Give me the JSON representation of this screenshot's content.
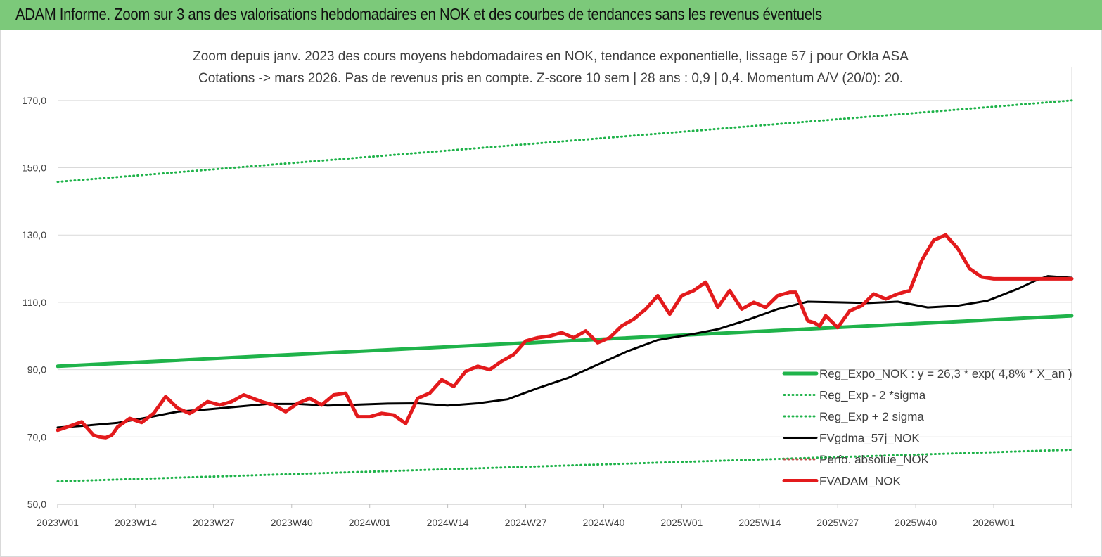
{
  "banner": {
    "title": "ADAM Informe. Zoom sur 3 ans des valorisations hebdomadaires en NOK et des courbes de tendances sans les revenus éventuels"
  },
  "chart_data": {
    "type": "line",
    "title": "Zoom depuis janv. 2023 des cours moyens hebdomadaires en NOK, tendance exponentielle, lissage 57 j pour Orkla ASA",
    "subtitle": "Cotations -> mars 2026. Pas de revenus pris en compte. Z-score 10 sem | 28 ans : 0,9 | 0,4. Momentum A/V (20/0): 20.",
    "x_tick_labels": [
      "2023W01",
      "2023W14",
      "2023W27",
      "2023W40",
      "2024W01",
      "2024W14",
      "2024W27",
      "2024W40",
      "2025W01",
      "2025W14",
      "2025W27",
      "2025W40",
      "2026W01"
    ],
    "y_tick_labels": [
      "50,0",
      "70,0",
      "90,0",
      "110,0",
      "130,0",
      "150,0",
      "170,0"
    ],
    "ylim": [
      50,
      180
    ],
    "n_weeks": 170,
    "grid": "horizontal",
    "legend_position": "bottom-right",
    "colors": {
      "green": "#1fb34a",
      "black": "#000000",
      "red": "#e31a1c",
      "orange": "#c0504d"
    },
    "series": [
      {
        "name": "Reg_Expo_NOK : y = 26,3 * exp( 4,8% *  X_an )",
        "style": "solid-thick",
        "color": "#1fb34a",
        "x": [
          0,
          169
        ],
        "y": [
          91.0,
          106.0
        ]
      },
      {
        "name": "Reg_Exp - 2 *sigma",
        "style": "dotted",
        "color": "#1fb34a",
        "x": [
          0,
          169
        ],
        "y": [
          56.8,
          66.2
        ]
      },
      {
        "name": "Reg_Exp + 2 sigma",
        "style": "dotted",
        "color": "#1fb34a",
        "x": [
          0,
          169
        ],
        "y": [
          145.8,
          170.0
        ]
      },
      {
        "name": "FVgdma_57j_NOK",
        "style": "solid",
        "color": "#000000",
        "x": [
          0,
          5,
          10,
          15,
          20,
          25,
          30,
          35,
          40,
          45,
          50,
          55,
          60,
          65,
          70,
          75,
          80,
          85,
          90,
          95,
          100,
          105,
          110,
          115,
          120,
          125,
          130,
          135,
          140,
          145,
          150,
          155,
          160,
          163,
          165,
          169
        ],
        "y": [
          72.8,
          73.4,
          74.2,
          75.8,
          77.5,
          78.2,
          79.0,
          79.8,
          79.8,
          79.3,
          79.6,
          79.9,
          80.0,
          79.3,
          80.0,
          81.2,
          84.5,
          87.5,
          91.5,
          95.5,
          98.8,
          100.3,
          102.0,
          104.8,
          108.0,
          110.2,
          110.0,
          109.8,
          110.2,
          108.5,
          109.0,
          110.5,
          114.0,
          116.5,
          117.8,
          117.3
        ]
      },
      {
        "name": "Perfo. absolue_NOK",
        "style": "dotted",
        "color": "#c0504d",
        "x": [],
        "y": []
      },
      {
        "name": "FVADAM_NOK",
        "style": "solid-thick",
        "color": "#e31a1c",
        "x": [
          0,
          2,
          4,
          6,
          7,
          8,
          9,
          10,
          12,
          14,
          16,
          18,
          20,
          22,
          23,
          25,
          27,
          29,
          31,
          34,
          36,
          38,
          40,
          42,
          44,
          46,
          48,
          50,
          52,
          54,
          56,
          58,
          60,
          62,
          64,
          66,
          68,
          70,
          72,
          74,
          76,
          78,
          80,
          82,
          84,
          86,
          88,
          90,
          92,
          94,
          96,
          98,
          100,
          102,
          104,
          106,
          108,
          110,
          112,
          114,
          116,
          118,
          120,
          122,
          123,
          125,
          126,
          127,
          128,
          130,
          132,
          134,
          136,
          138,
          140,
          142,
          144,
          146,
          148,
          150,
          152,
          154,
          156,
          158,
          160,
          162,
          164,
          166,
          167,
          168,
          169
        ],
        "y": [
          72.0,
          73.2,
          74.5,
          70.5,
          70.0,
          69.8,
          70.5,
          73.0,
          75.5,
          74.3,
          77.0,
          82.0,
          78.5,
          77.0,
          78.0,
          80.5,
          79.5,
          80.5,
          82.5,
          80.5,
          79.5,
          77.5,
          80.0,
          81.5,
          79.5,
          82.5,
          83.0,
          76.0,
          76.0,
          77.0,
          76.5,
          74.0,
          81.5,
          83.0,
          87.0,
          85.0,
          89.5,
          91.0,
          90.0,
          92.5,
          94.5,
          98.5,
          99.5,
          100.0,
          101.0,
          99.5,
          101.5,
          98.0,
          99.5,
          103.0,
          105.0,
          108.0,
          112.0,
          106.5,
          112.0,
          113.5,
          116.0,
          108.5,
          113.5,
          108.0,
          110.0,
          108.5,
          112.0,
          113.0,
          113.0,
          104.5,
          104.0,
          103.0,
          106.0,
          102.5,
          107.5,
          109.0,
          112.5,
          111.0,
          112.5,
          113.5,
          122.5,
          128.5,
          130.0,
          126.0,
          120.0,
          117.5,
          117.0,
          117.0,
          117.0,
          117.0,
          117.0,
          117.0,
          117.0,
          117.0,
          117.0
        ]
      }
    ]
  }
}
